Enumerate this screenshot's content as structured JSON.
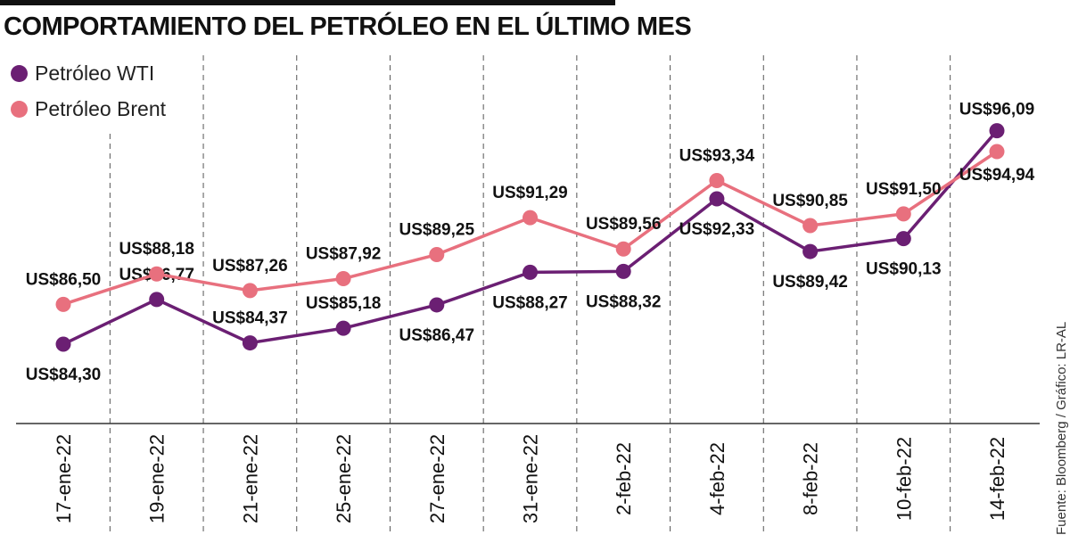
{
  "title": "COMPORTAMIENTO DEL PETRÓLEO EN EL ÚLTIMO MES",
  "source": "Fuente: Bloomberg / Gráfico: LR-AL",
  "colors": {
    "wti": "#6b1f73",
    "brent": "#e8707e",
    "grid": "#555555",
    "axis": "#333333"
  },
  "chart_data": {
    "type": "line",
    "categories": [
      "17-ene-22",
      "19-ene-22",
      "21-ene-22",
      "25-ene-22",
      "27-ene-22",
      "31-ene-22",
      "2-feb-22",
      "4-feb-22",
      "8-feb-22",
      "10-feb-22",
      "14-feb-22"
    ],
    "series": [
      {
        "name": "Petróleo WTI",
        "color": "#6b1f73",
        "values": [
          84.3,
          86.77,
          84.37,
          85.18,
          86.47,
          88.27,
          88.32,
          92.33,
          89.42,
          90.13,
          96.09
        ],
        "labels": [
          "US$84,30",
          "US$86,77",
          "US$84,37",
          "US$85,18",
          "US$86,47",
          "US$88,27",
          "US$88,32",
          "US$92,33",
          "US$89,42",
          "US$90,13",
          "US$96,09"
        ]
      },
      {
        "name": "Petróleo Brent",
        "color": "#e8707e",
        "values": [
          86.5,
          88.18,
          87.26,
          87.92,
          89.25,
          91.29,
          89.56,
          93.34,
          90.85,
          91.5,
          94.94
        ],
        "labels": [
          "US$86,50",
          "US$88,18",
          "US$87,26",
          "US$87,92",
          "US$89,25",
          "US$91,29",
          "US$89,56",
          "US$93,34",
          "US$90,85",
          "US$91,50",
          "US$94,94"
        ]
      }
    ],
    "grid": "vertical-dashed",
    "legend": "top-left"
  }
}
